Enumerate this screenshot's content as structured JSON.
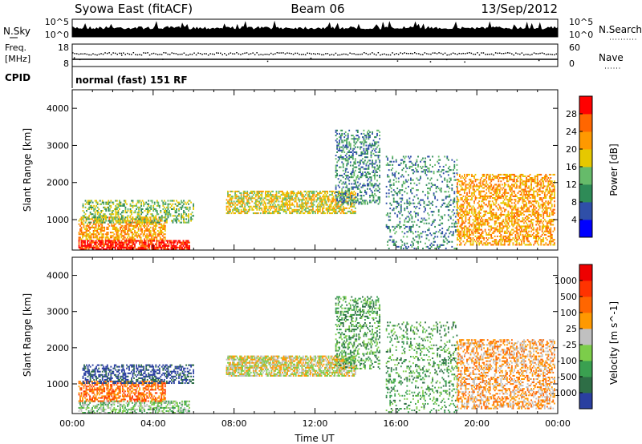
{
  "header": {
    "station": "Syowa East (fitACF)",
    "beam": "Beam 06",
    "date": "13/Sep/2012"
  },
  "noise_panel": {
    "left_label": "N.Sky",
    "right_label": "N.Search",
    "top_tick": "10^5",
    "bottom_tick": "10^0"
  },
  "freq_panel": {
    "left_label_line1": "Freq.",
    "left_label_line2": "[MHz]",
    "right_label": "Nave",
    "left_top_tick": "18",
    "left_bottom_tick": "8",
    "right_top_tick": "60",
    "right_bottom_tick": "0"
  },
  "cpid": {
    "label": "CPID",
    "mode": "normal (fast) 151 RF"
  },
  "x_axis": {
    "label": "Time UT",
    "ticks": [
      "00:00",
      "04:00",
      "08:00",
      "12:00",
      "16:00",
      "20:00",
      "00:00"
    ]
  },
  "chart_data": [
    {
      "type": "heatmap",
      "name": "power",
      "ylabel": "Slant Range [km]",
      "xlabel": "Time UT",
      "ylim": [
        180,
        4500
      ],
      "y_ticks": [
        "1000",
        "2000",
        "3000",
        "4000"
      ],
      "colorbar": {
        "label": "Power [dB]",
        "ticks": [
          "4",
          "8",
          "12",
          "16",
          "20",
          "24",
          "28"
        ],
        "colors": [
          "#0000ff",
          "#2f4fa8",
          "#2e8b57",
          "#66bb6a",
          "#e6c800",
          "#ff9900",
          "#ff6600",
          "#ff0000"
        ]
      },
      "echo_regions": [
        {
          "t": [
            0.3,
            5.8
          ],
          "r": [
            180,
            450
          ],
          "level": 7,
          "density": 0.8
        },
        {
          "t": [
            0.3,
            4.6
          ],
          "r": [
            450,
            1050
          ],
          "level": 5,
          "density": 0.55
        },
        {
          "t": [
            0.5,
            6.0
          ],
          "r": [
            900,
            1500
          ],
          "level": 3,
          "density": 0.45
        },
        {
          "t": [
            7.6,
            14.0
          ],
          "r": [
            1150,
            1750
          ],
          "level": 4,
          "density": 0.6
        },
        {
          "t": [
            13.0,
            15.2
          ],
          "r": [
            1400,
            3400
          ],
          "level": 2,
          "density": 0.35
        },
        {
          "t": [
            15.5,
            19.0
          ],
          "r": [
            200,
            2700
          ],
          "level": 2,
          "density": 0.2
        },
        {
          "t": [
            19.0,
            23.8
          ],
          "r": [
            300,
            2200
          ],
          "level": 5,
          "density": 0.5
        }
      ]
    },
    {
      "type": "heatmap",
      "name": "velocity",
      "ylabel": "Slant Range [km]",
      "xlabel": "Time UT",
      "ylim": [
        180,
        4500
      ],
      "y_ticks": [
        "1000",
        "2000",
        "3000",
        "4000"
      ],
      "colorbar": {
        "label": "Velocity [m s^-1]",
        "ticks": [
          "1000",
          "500",
          "100",
          "25",
          "-25",
          "-100",
          "-500",
          "-1000"
        ],
        "colors": [
          "#2a3fa0",
          "#2e6e46",
          "#3aa050",
          "#7ccd4a",
          "#c0c0c0",
          "#ff9900",
          "#ff6600",
          "#ff3300",
          "#ee0000"
        ]
      },
      "echo_regions": [
        {
          "t": [
            0.3,
            5.8
          ],
          "r": [
            180,
            500
          ],
          "level": 3,
          "density": 0.5
        },
        {
          "t": [
            0.3,
            4.6
          ],
          "r": [
            500,
            1050
          ],
          "level": 6,
          "density": 0.55
        },
        {
          "t": [
            0.5,
            6.0
          ],
          "r": [
            1000,
            1500
          ],
          "level": 0,
          "density": 0.5
        },
        {
          "t": [
            7.6,
            14.0
          ],
          "r": [
            1200,
            1750
          ],
          "level": 4,
          "density": 0.7
        },
        {
          "t": [
            13.0,
            15.2
          ],
          "r": [
            1400,
            3400
          ],
          "level": 2,
          "density": 0.35
        },
        {
          "t": [
            15.5,
            19.0
          ],
          "r": [
            200,
            2700
          ],
          "level": 2,
          "density": 0.2
        },
        {
          "t": [
            19.0,
            23.8
          ],
          "r": [
            300,
            2200
          ],
          "level": 5,
          "density": 0.45
        }
      ]
    }
  ]
}
